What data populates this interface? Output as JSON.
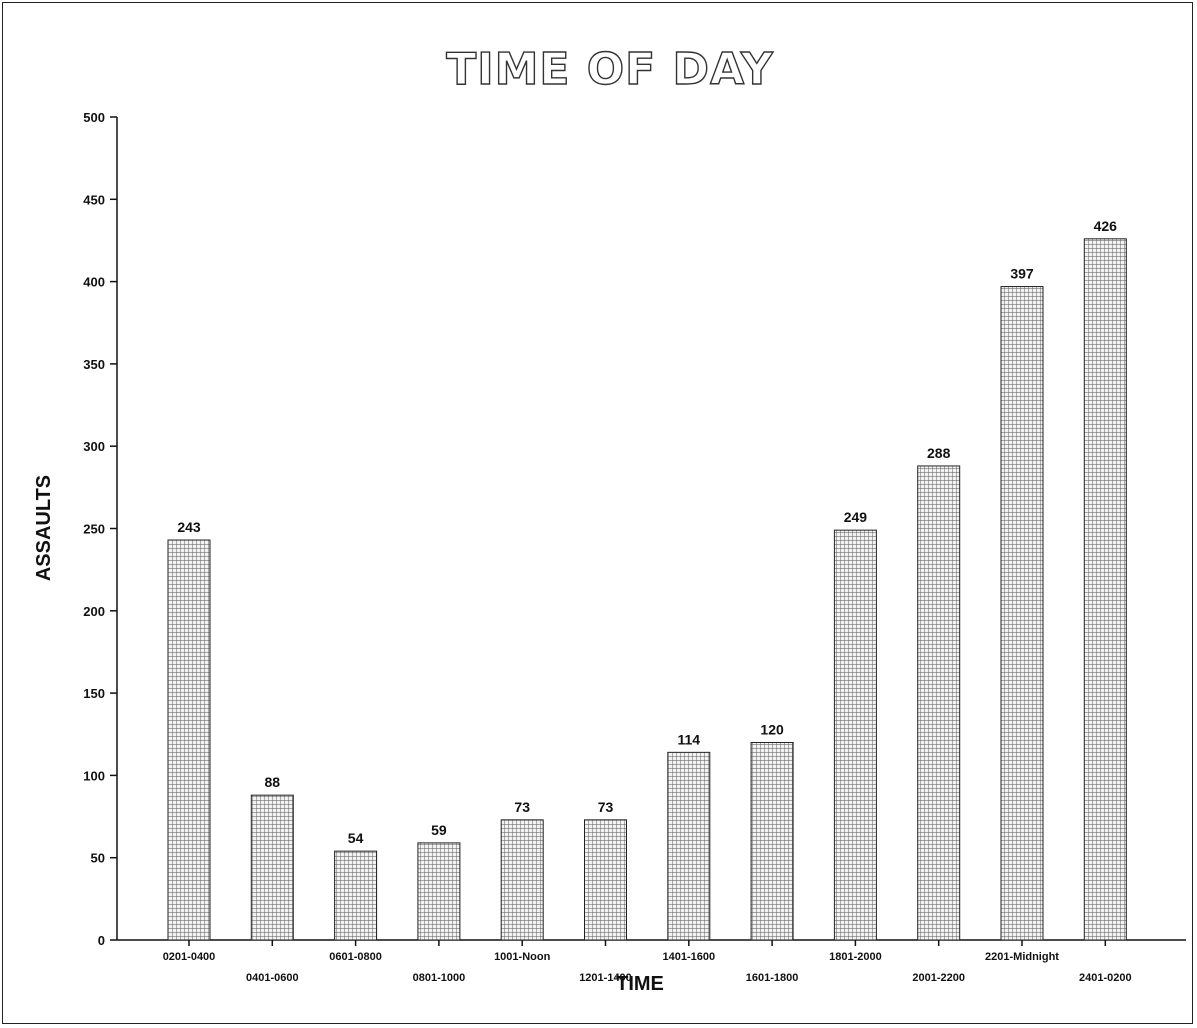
{
  "chart_data": {
    "type": "bar",
    "title": "TIME OF DAY",
    "xlabel": "TIME",
    "ylabel": "ASSAULTS",
    "ylim": [
      0,
      500
    ],
    "yticks": [
      0,
      50,
      100,
      150,
      200,
      250,
      300,
      350,
      400,
      450,
      500
    ],
    "categories": [
      "0201-0400",
      "0401-0600",
      "0601-0800",
      "0801-1000",
      "1001-Noon",
      "1201-1400",
      "1401-1600",
      "1601-1800",
      "1801-2000",
      "2001-2200",
      "2201-Midnight",
      "2401-0200"
    ],
    "values": [
      243,
      88,
      54,
      59,
      73,
      73,
      114,
      120,
      249,
      288,
      397,
      426
    ],
    "grid": false,
    "bar_pattern": "crosshatch"
  }
}
